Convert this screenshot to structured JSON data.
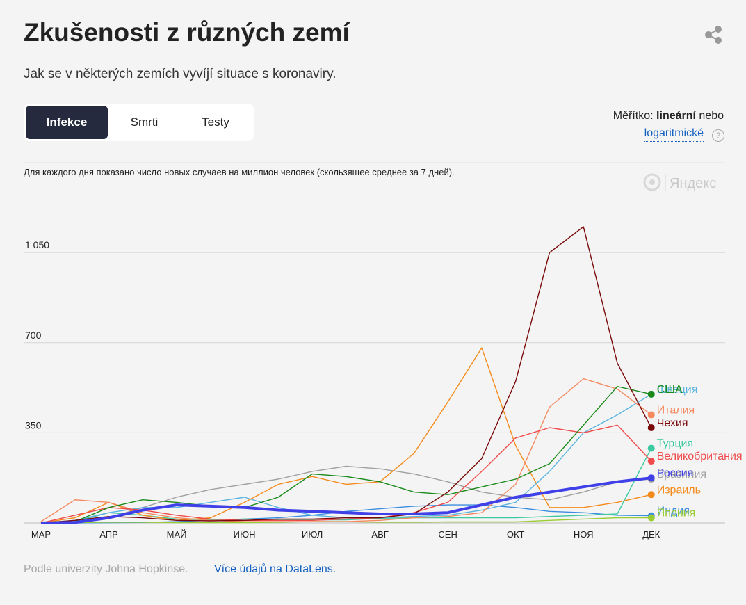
{
  "header": {
    "title": "Zkušenosti z různých zemí",
    "subtitle": "Jak se v některých zemích vyvíjí situace s koronaviry."
  },
  "tabs": [
    "Infekce",
    "Smrti",
    "Testy"
  ],
  "scale": {
    "label": "Měřítko:",
    "linear": "lineární",
    "or": "nebo",
    "log": "logaritmické",
    "help": "?"
  },
  "chart_data": {
    "type": "line",
    "note": "Для каждого дня показано число новых случаев на миллион человек (скользящее среднее за 7 дней).",
    "watermark": "Яндекс",
    "x": [
      0,
      0.5,
      1,
      1.5,
      2,
      2.5,
      3,
      3.5,
      4,
      4.5,
      5,
      5.5,
      6,
      6.5,
      7,
      7.5,
      8,
      8.5,
      9
    ],
    "xlim": [
      0,
      10.1
    ],
    "xticks": [
      {
        "value": 0,
        "label": "МАР"
      },
      {
        "value": 1,
        "label": "АПР"
      },
      {
        "value": 2,
        "label": "МАЙ"
      },
      {
        "value": 3,
        "label": "ИЮН"
      },
      {
        "value": 4,
        "label": "ИЮЛ"
      },
      {
        "value": 5,
        "label": "АВГ"
      },
      {
        "value": 6,
        "label": "СЕН"
      },
      {
        "value": 7,
        "label": "ОКТ"
      },
      {
        "value": 8,
        "label": "НОЯ"
      },
      {
        "value": 9,
        "label": "ДЕК"
      }
    ],
    "ylim": [
      0,
      1300
    ],
    "yticks": [
      {
        "value": 350,
        "label": "350"
      },
      {
        "value": 700,
        "label": "700"
      },
      {
        "value": 1050,
        "label": "1 050"
      }
    ],
    "grid": true,
    "series": [
      {
        "name": "Бразилия",
        "color": "#a0a0a0",
        "values": [
          0,
          5,
          20,
          60,
          100,
          130,
          150,
          170,
          200,
          220,
          210,
          190,
          160,
          120,
          100,
          90,
          120,
          160,
          170
        ]
      },
      {
        "name": "Индия",
        "color": "#3a8ee0",
        "values": [
          0,
          0,
          1,
          2,
          5,
          10,
          15,
          20,
          30,
          45,
          55,
          65,
          70,
          70,
          60,
          45,
          40,
          30,
          28
        ]
      },
      {
        "name": "Япония",
        "color": "#9acd32",
        "values": [
          0,
          1,
          3,
          3,
          1,
          1,
          1,
          3,
          5,
          5,
          3,
          3,
          4,
          4,
          4,
          10,
          15,
          20,
          20
        ]
      },
      {
        "name": "Турция",
        "color": "#3cc8a0",
        "values": [
          0,
          5,
          40,
          30,
          15,
          12,
          15,
          13,
          12,
          12,
          18,
          20,
          20,
          20,
          20,
          25,
          30,
          35,
          290
        ]
      },
      {
        "name": "Израиль",
        "color": "#f58a1a",
        "values": [
          0,
          20,
          80,
          30,
          10,
          20,
          80,
          150,
          180,
          150,
          160,
          270,
          470,
          680,
          300,
          60,
          60,
          80,
          110
        ]
      },
      {
        "name": "Швеция",
        "color": "#5ab4e0",
        "values": [
          0,
          10,
          40,
          60,
          60,
          80,
          100,
          60,
          30,
          20,
          20,
          25,
          30,
          50,
          80,
          200,
          350,
          420,
          500
        ]
      },
      {
        "name": "Италия",
        "color": "#f4895f",
        "values": [
          5,
          90,
          80,
          40,
          20,
          10,
          5,
          5,
          5,
          5,
          10,
          20,
          25,
          40,
          150,
          450,
          560,
          520,
          420
        ]
      },
      {
        "name": "Великобритания",
        "color": "#f04a4a",
        "values": [
          0,
          30,
          60,
          50,
          30,
          15,
          10,
          10,
          10,
          15,
          20,
          40,
          80,
          200,
          330,
          370,
          350,
          380,
          240
        ]
      },
      {
        "name": "США",
        "color": "#1a8a1a",
        "values": [
          0,
          5,
          60,
          90,
          80,
          65,
          60,
          100,
          190,
          180,
          160,
          120,
          110,
          140,
          170,
          230,
          380,
          530,
          500
        ]
      },
      {
        "name": "Чехия",
        "color": "#7a0a0a",
        "values": [
          0,
          10,
          25,
          20,
          10,
          8,
          10,
          15,
          15,
          20,
          20,
          35,
          120,
          250,
          550,
          1050,
          1150,
          620,
          370
        ]
      },
      {
        "name": "Россия",
        "color": "#4040e8",
        "values": [
          0,
          2,
          20,
          50,
          70,
          65,
          60,
          50,
          45,
          40,
          35,
          35,
          40,
          70,
          100,
          120,
          140,
          160,
          175
        ]
      }
    ]
  },
  "footer": {
    "source": "Podle univerzity Johna Hopkinse.",
    "link": "Více údajů na DataLens."
  }
}
